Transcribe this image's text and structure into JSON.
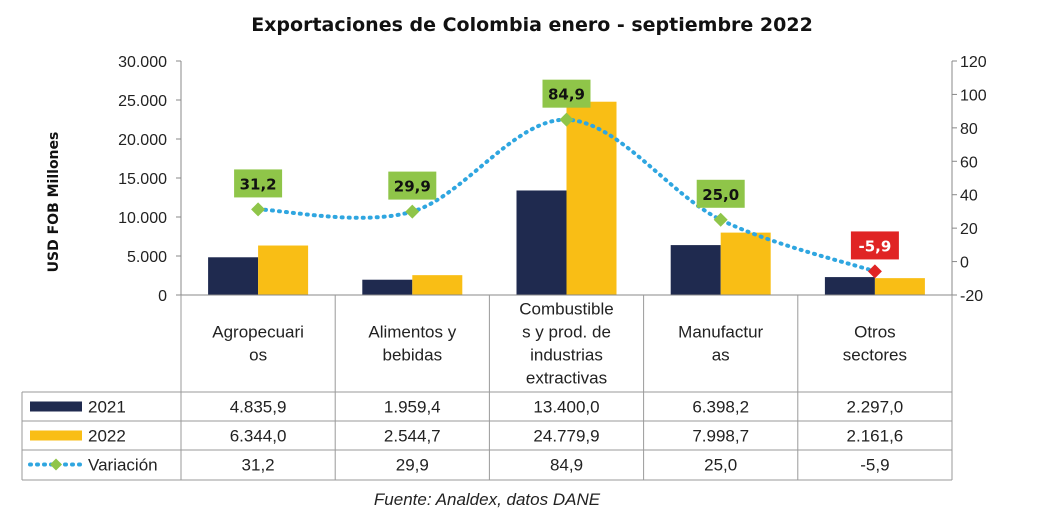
{
  "chart_data": {
    "type": "bar",
    "title": "Exportaciones de Colombia enero - septiembre 2022",
    "ylabel": "USD FOB Millones",
    "ylim": [
      0,
      30000
    ],
    "y_ticks": [
      "0",
      "5.000",
      "10.000",
      "15.000",
      "20.000",
      "25.000",
      "30.000"
    ],
    "y2lim": [
      -20,
      120
    ],
    "y2_ticks": [
      "-20",
      "0",
      "20",
      "40",
      "60",
      "80",
      "100",
      "120"
    ],
    "categories": [
      [
        "Agropecuari",
        "os"
      ],
      [
        "Alimentos y",
        "bebidas"
      ],
      [
        "Combustible",
        "s y prod. de",
        "industrias",
        "extractivas"
      ],
      [
        "Manufactur",
        "as"
      ],
      [
        "Otros",
        "sectores"
      ]
    ],
    "series": [
      {
        "name": "2021",
        "type": "bar",
        "axis": "left",
        "color": "#1f2a4f",
        "values": [
          4835.9,
          1959.4,
          13400.0,
          6398.2,
          2297.0
        ],
        "labels": [
          "4.835,9",
          "1.959,4",
          "13.400,0",
          "6.398,2",
          "2.297,0"
        ]
      },
      {
        "name": "2022",
        "type": "bar",
        "axis": "left",
        "color": "#f9be15",
        "values": [
          6344.0,
          2544.7,
          24779.9,
          7998.7,
          2161.6
        ],
        "labels": [
          "6.344,0",
          "2.544,7",
          "24.779,9",
          "7.998,7",
          "2.161,6"
        ]
      },
      {
        "name": "Variación",
        "type": "line",
        "axis": "right",
        "color": "#2fa6e0",
        "marker_color": "#8fc549",
        "negative_color": "#e02424",
        "values": [
          31.2,
          29.9,
          84.9,
          25.0,
          -5.9
        ],
        "labels": [
          "31,2",
          "29,9",
          "84,9",
          "25,0",
          "-5,9"
        ]
      }
    ],
    "source": "Fuente: Analdex, datos DANE"
  }
}
